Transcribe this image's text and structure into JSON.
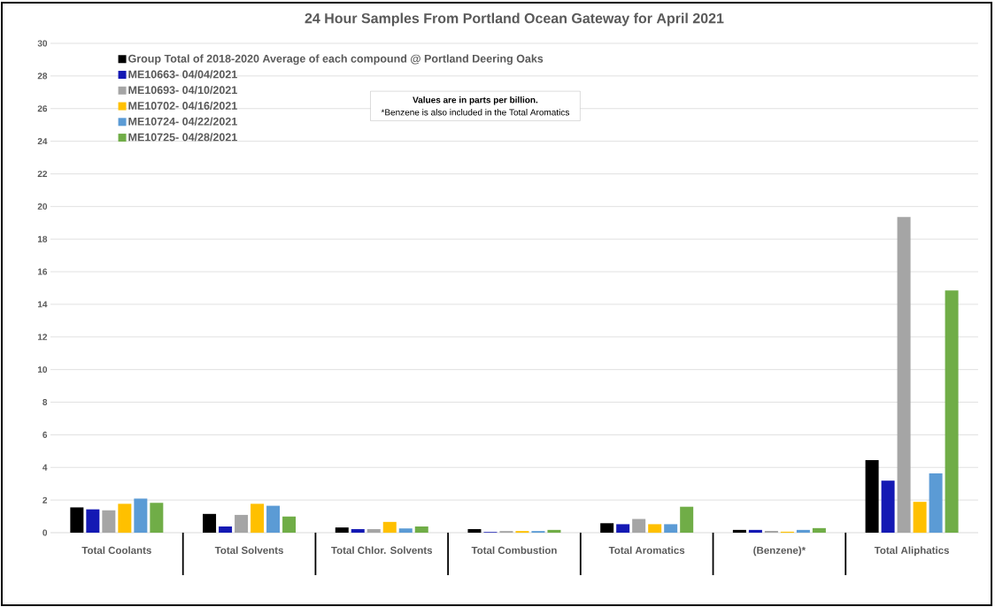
{
  "chart_data": {
    "type": "bar",
    "title": "24 Hour Samples From Portland Ocean Gateway for April 2021",
    "categories": [
      "Total Coolants",
      "Total Solvents",
      "Total Chlor. Solvents",
      "Total Combustion",
      "Total Aromatics",
      "(Benzene)*",
      "Total Aliphatics"
    ],
    "series": [
      {
        "name": "Group Total of 2018-2020 Average of each compound @ Portland Deering Oaks",
        "color": "#000000",
        "values": [
          1.55,
          1.15,
          0.32,
          0.22,
          0.58,
          0.17,
          4.45
        ]
      },
      {
        "name": "ME10663- 04/04/2021",
        "color": "#1419b4",
        "values": [
          1.43,
          0.38,
          0.22,
          0.04,
          0.52,
          0.17,
          3.19
        ]
      },
      {
        "name": "ME10693- 04/10/2021",
        "color": "#a5a5a5",
        "values": [
          1.37,
          1.09,
          0.22,
          0.1,
          0.84,
          0.11,
          19.36
        ]
      },
      {
        "name": "ME10702- 04/16/2021",
        "color": "#ffc000",
        "values": [
          1.77,
          1.77,
          0.66,
          0.1,
          0.52,
          0.06,
          1.89
        ]
      },
      {
        "name": "ME10724- 04/22/2021",
        "color": "#5b9bd5",
        "values": [
          2.09,
          1.65,
          0.26,
          0.1,
          0.52,
          0.17,
          3.63
        ]
      },
      {
        "name": "ME10725- 04/28/2021",
        "color": "#70ad47",
        "values": [
          1.83,
          0.99,
          0.38,
          0.17,
          1.59,
          0.28,
          14.85
        ]
      }
    ],
    "ylim": [
      0,
      30
    ],
    "yticks": [
      0,
      2,
      4,
      6,
      8,
      10,
      12,
      14,
      16,
      18,
      20,
      22,
      24,
      26,
      28,
      30
    ],
    "grid": "y",
    "legend": "top left",
    "annotations": [
      "Values are in parts per billion.",
      "*Benzene is also included in the Total Aromatics"
    ]
  }
}
